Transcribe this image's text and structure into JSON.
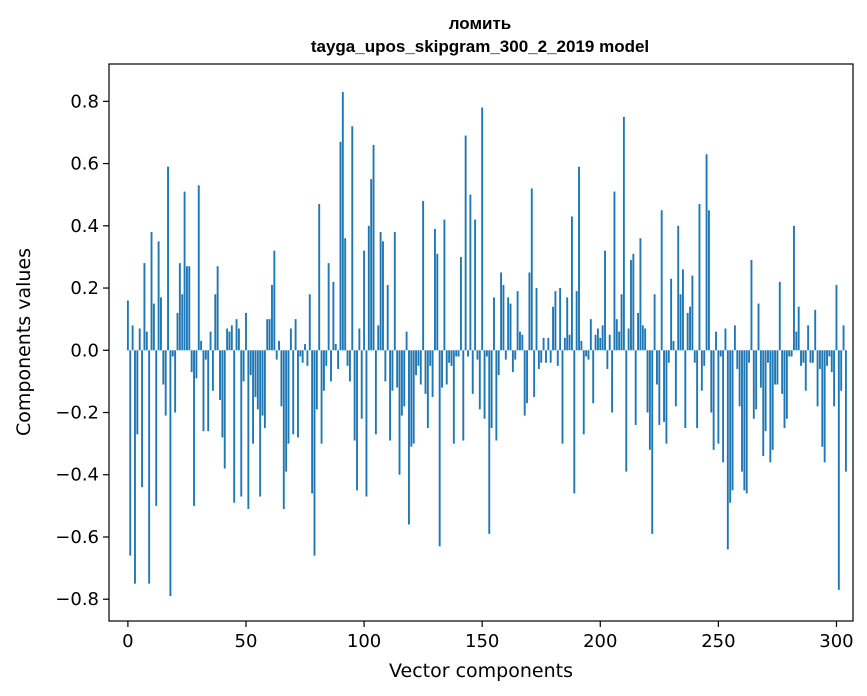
{
  "chart_data": {
    "type": "bar",
    "title": "ломить",
    "subtitle": "tayga_upos_skipgram_300_2_2019 model",
    "xlabel": "Vector components",
    "ylabel": "Components values",
    "xlim": [
      -8,
      307
    ],
    "ylim": [
      -0.87,
      0.92
    ],
    "xticks": [
      0,
      50,
      100,
      150,
      200,
      250,
      300
    ],
    "yticks": [
      -0.8,
      -0.6,
      -0.4,
      -0.2,
      0.0,
      0.2,
      0.4,
      0.6,
      0.8
    ],
    "xtick_labels": [
      "0",
      "50",
      "100",
      "150",
      "200",
      "250",
      "300"
    ],
    "ytick_labels": [
      "−0.8",
      "−0.6",
      "−0.4",
      "−0.2",
      "0.0",
      "0.2",
      "0.4",
      "0.6",
      "0.8"
    ],
    "series": [
      {
        "name": "components",
        "color": "#1f77b4",
        "values": [
          0.16,
          -0.66,
          0.08,
          -0.75,
          -0.27,
          0.07,
          -0.44,
          0.28,
          0.06,
          -0.75,
          0.38,
          0.15,
          -0.5,
          0.35,
          0.17,
          -0.11,
          -0.21,
          0.59,
          -0.79,
          -0.02,
          -0.2,
          0.12,
          0.28,
          0.18,
          0.51,
          0.27,
          0.27,
          -0.07,
          -0.5,
          -0.09,
          0.53,
          0.03,
          -0.26,
          -0.03,
          -0.26,
          0.06,
          -0.13,
          0.18,
          0.27,
          -0.16,
          -0.28,
          -0.38,
          0.07,
          0.06,
          0.08,
          -0.49,
          0.1,
          0.07,
          -0.47,
          -0.1,
          0.12,
          -0.51,
          -0.08,
          -0.3,
          -0.15,
          -0.19,
          -0.47,
          -0.21,
          -0.25,
          0.1,
          0.1,
          0.21,
          0.32,
          -0.03,
          0.03,
          -0.18,
          -0.51,
          -0.39,
          -0.3,
          0.07,
          -0.27,
          0.1,
          -0.28,
          -0.02,
          -0.04,
          0.02,
          -0.05,
          0.18,
          -0.46,
          -0.66,
          -0.19,
          0.47,
          -0.3,
          -0.13,
          -0.05,
          0.28,
          -0.1,
          0.22,
          0.02,
          -0.06,
          0.67,
          0.83,
          0.36,
          -0.05,
          -0.1,
          0.72,
          -0.29,
          -0.45,
          0.07,
          -0.22,
          0.32,
          -0.47,
          0.4,
          0.55,
          0.66,
          -0.27,
          0.08,
          0.38,
          0.35,
          -0.1,
          0.21,
          -0.29,
          -0.13,
          0.38,
          -0.12,
          -0.4,
          -0.21,
          -0.18,
          0.06,
          -0.56,
          -0.31,
          -0.3,
          -0.08,
          -0.05,
          -0.11,
          0.48,
          -0.14,
          -0.25,
          -0.05,
          -0.15,
          0.39,
          0.31,
          -0.63,
          -0.12,
          0.42,
          -0.11,
          -0.04,
          -0.05,
          -0.3,
          -0.02,
          -0.02,
          0.3,
          -0.29,
          0.69,
          -0.02,
          0.5,
          -0.14,
          0.42,
          -0.03,
          -0.19,
          0.78,
          -0.22,
          -0.02,
          -0.59,
          -0.25,
          0.17,
          -0.29,
          -0.08,
          0.25,
          0.21,
          -0.03,
          0.17,
          0.15,
          -0.07,
          -0.03,
          0.19,
          0.06,
          0.05,
          -0.21,
          -0.17,
          0.25,
          0.52,
          -0.15,
          0.2,
          -0.06,
          -0.04,
          0.04,
          -0.04,
          0.04,
          -0.04,
          0.14,
          0.19,
          -0.05,
          0.2,
          -0.3,
          0.04,
          0.17,
          0.05,
          0.43,
          -0.46,
          0.19,
          0.59,
          0.03,
          -0.27,
          -0.02,
          -0.03,
          0.1,
          -0.17,
          0.05,
          0.07,
          0.04,
          0.08,
          0.32,
          -0.06,
          0.05,
          -0.2,
          0.51,
          0.1,
          0.06,
          0.18,
          0.75,
          -0.39,
          0.07,
          0.29,
          0.31,
          -0.24,
          0.12,
          0.36,
          0.08,
          0.07,
          -0.2,
          -0.32,
          -0.59,
          0.18,
          -0.11,
          -0.24,
          0.45,
          -0.23,
          -0.3,
          -0.04,
          0.23,
          0.03,
          -0.18,
          0.4,
          0.18,
          0.26,
          -0.25,
          0.12,
          0.14,
          0.24,
          -0.04,
          -0.25,
          0.47,
          -0.13,
          -0.05,
          0.63,
          0.45,
          -0.2,
          -0.32,
          0.06,
          -0.3,
          -0.02,
          -0.36,
          0.07,
          -0.64,
          -0.49,
          -0.45,
          0.08,
          -0.06,
          -0.18,
          -0.39,
          -0.45,
          -0.46,
          -0.04,
          0.29,
          -0.22,
          -0.19,
          0.15,
          -0.12,
          -0.34,
          -0.26,
          -0.04,
          -0.36,
          -0.32,
          -0.11,
          -0.11,
          0.22,
          -0.14,
          -0.25,
          -0.22,
          -0.02,
          -0.02,
          0.4,
          0.06,
          0.14,
          -0.05,
          -0.04,
          -0.13,
          0.08,
          -0.04,
          -0.04,
          0.13,
          -0.18,
          -0.06,
          -0.31,
          -0.36,
          -0.05,
          -0.02,
          -0.07,
          -0.18,
          0.21,
          -0.77,
          -0.13,
          0.08,
          -0.39
        ]
      }
    ]
  }
}
